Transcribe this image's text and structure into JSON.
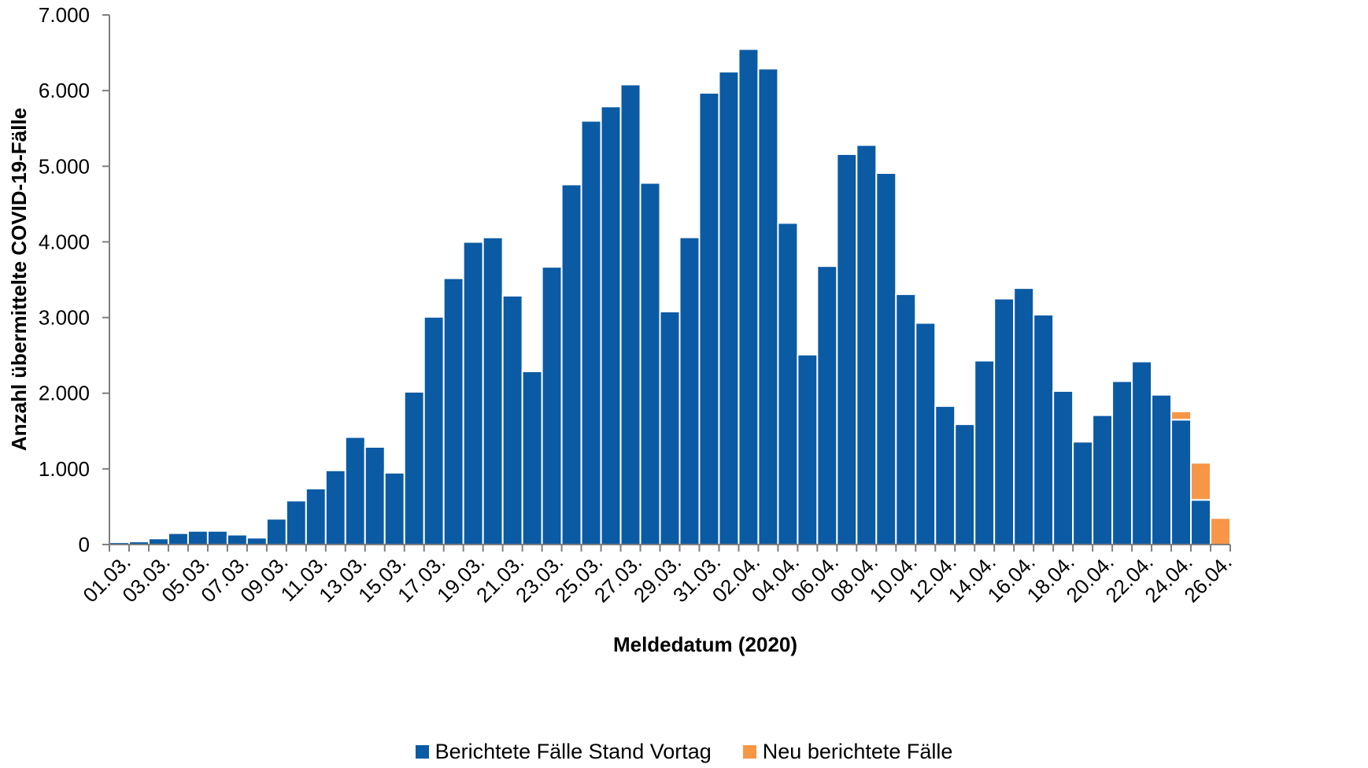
{
  "chart_data": {
    "type": "bar",
    "stacked": true,
    "xlabel": "Meldedatum (2020)",
    "ylabel": "Anzahl übermittelte COVID-19-Fälle",
    "ylim": [
      0,
      7000
    ],
    "yticks": [
      "0",
      "1.000",
      "2.000",
      "3.000",
      "4.000",
      "5.000",
      "6.000",
      "7.000"
    ],
    "ytick_values": [
      0,
      1000,
      2000,
      3000,
      4000,
      5000,
      6000,
      7000
    ],
    "grid": false,
    "legend_position": "bottom",
    "categories": [
      "01.03.",
      "02.03.",
      "03.03.",
      "04.03.",
      "05.03.",
      "06.03.",
      "07.03.",
      "08.03.",
      "09.03.",
      "10.03.",
      "11.03.",
      "12.03.",
      "13.03.",
      "14.03.",
      "15.03.",
      "16.03.",
      "17.03.",
      "18.03.",
      "19.03.",
      "20.03.",
      "21.03.",
      "22.03.",
      "23.03.",
      "24.03.",
      "25.03.",
      "26.03.",
      "27.03.",
      "28.03.",
      "29.03.",
      "30.03.",
      "31.03.",
      "01.04.",
      "02.04.",
      "03.04.",
      "04.04.",
      "05.04.",
      "06.04.",
      "07.04.",
      "08.04.",
      "09.04.",
      "10.04.",
      "11.04.",
      "12.04.",
      "13.04.",
      "14.04.",
      "15.04.",
      "16.04.",
      "17.04.",
      "18.04.",
      "19.04.",
      "20.04.",
      "21.04.",
      "22.04.",
      "23.04.",
      "24.04.",
      "25.04.",
      "26.04."
    ],
    "tick_labels": [
      "01.03.",
      "03.03.",
      "05.03.",
      "07.03.",
      "09.03.",
      "11.03.",
      "13.03.",
      "15.03.",
      "17.03.",
      "19.03.",
      "21.03.",
      "23.03.",
      "25.03.",
      "27.03.",
      "29.03.",
      "31.03.",
      "02.04.",
      "04.04.",
      "06.04.",
      "08.04.",
      "10.04.",
      "12.04.",
      "14.04.",
      "16.04.",
      "18.04.",
      "20.04.",
      "22.04.",
      "24.04.",
      "26.04."
    ],
    "series": [
      {
        "name": "Berichtete Fälle Stand Vortag",
        "color": "#0b5aa4",
        "values": [
          30,
          40,
          80,
          150,
          180,
          180,
          130,
          90,
          340,
          580,
          740,
          980,
          1420,
          1290,
          950,
          2020,
          3010,
          3520,
          4000,
          4060,
          3290,
          2290,
          3670,
          4760,
          5600,
          5790,
          6080,
          4780,
          3080,
          4060,
          5970,
          6250,
          6550,
          6290,
          4250,
          2510,
          3680,
          5160,
          5280,
          4910,
          3310,
          2930,
          1830,
          1590,
          2430,
          3250,
          3390,
          3040,
          2030,
          1360,
          1710,
          2160,
          2420,
          1980,
          1650,
          590,
          0
        ]
      },
      {
        "name": "Neu berichtete Fälle",
        "color": "#f79646",
        "values": [
          0,
          0,
          0,
          0,
          0,
          0,
          0,
          0,
          0,
          0,
          0,
          0,
          0,
          0,
          10,
          10,
          10,
          10,
          10,
          10,
          10,
          10,
          0,
          10,
          0,
          0,
          0,
          10,
          0,
          0,
          0,
          0,
          10,
          0,
          0,
          0,
          0,
          0,
          0,
          0,
          10,
          10,
          0,
          0,
          0,
          0,
          10,
          10,
          10,
          10,
          10,
          10,
          10,
          10,
          110,
          490,
          350
        ]
      }
    ]
  }
}
